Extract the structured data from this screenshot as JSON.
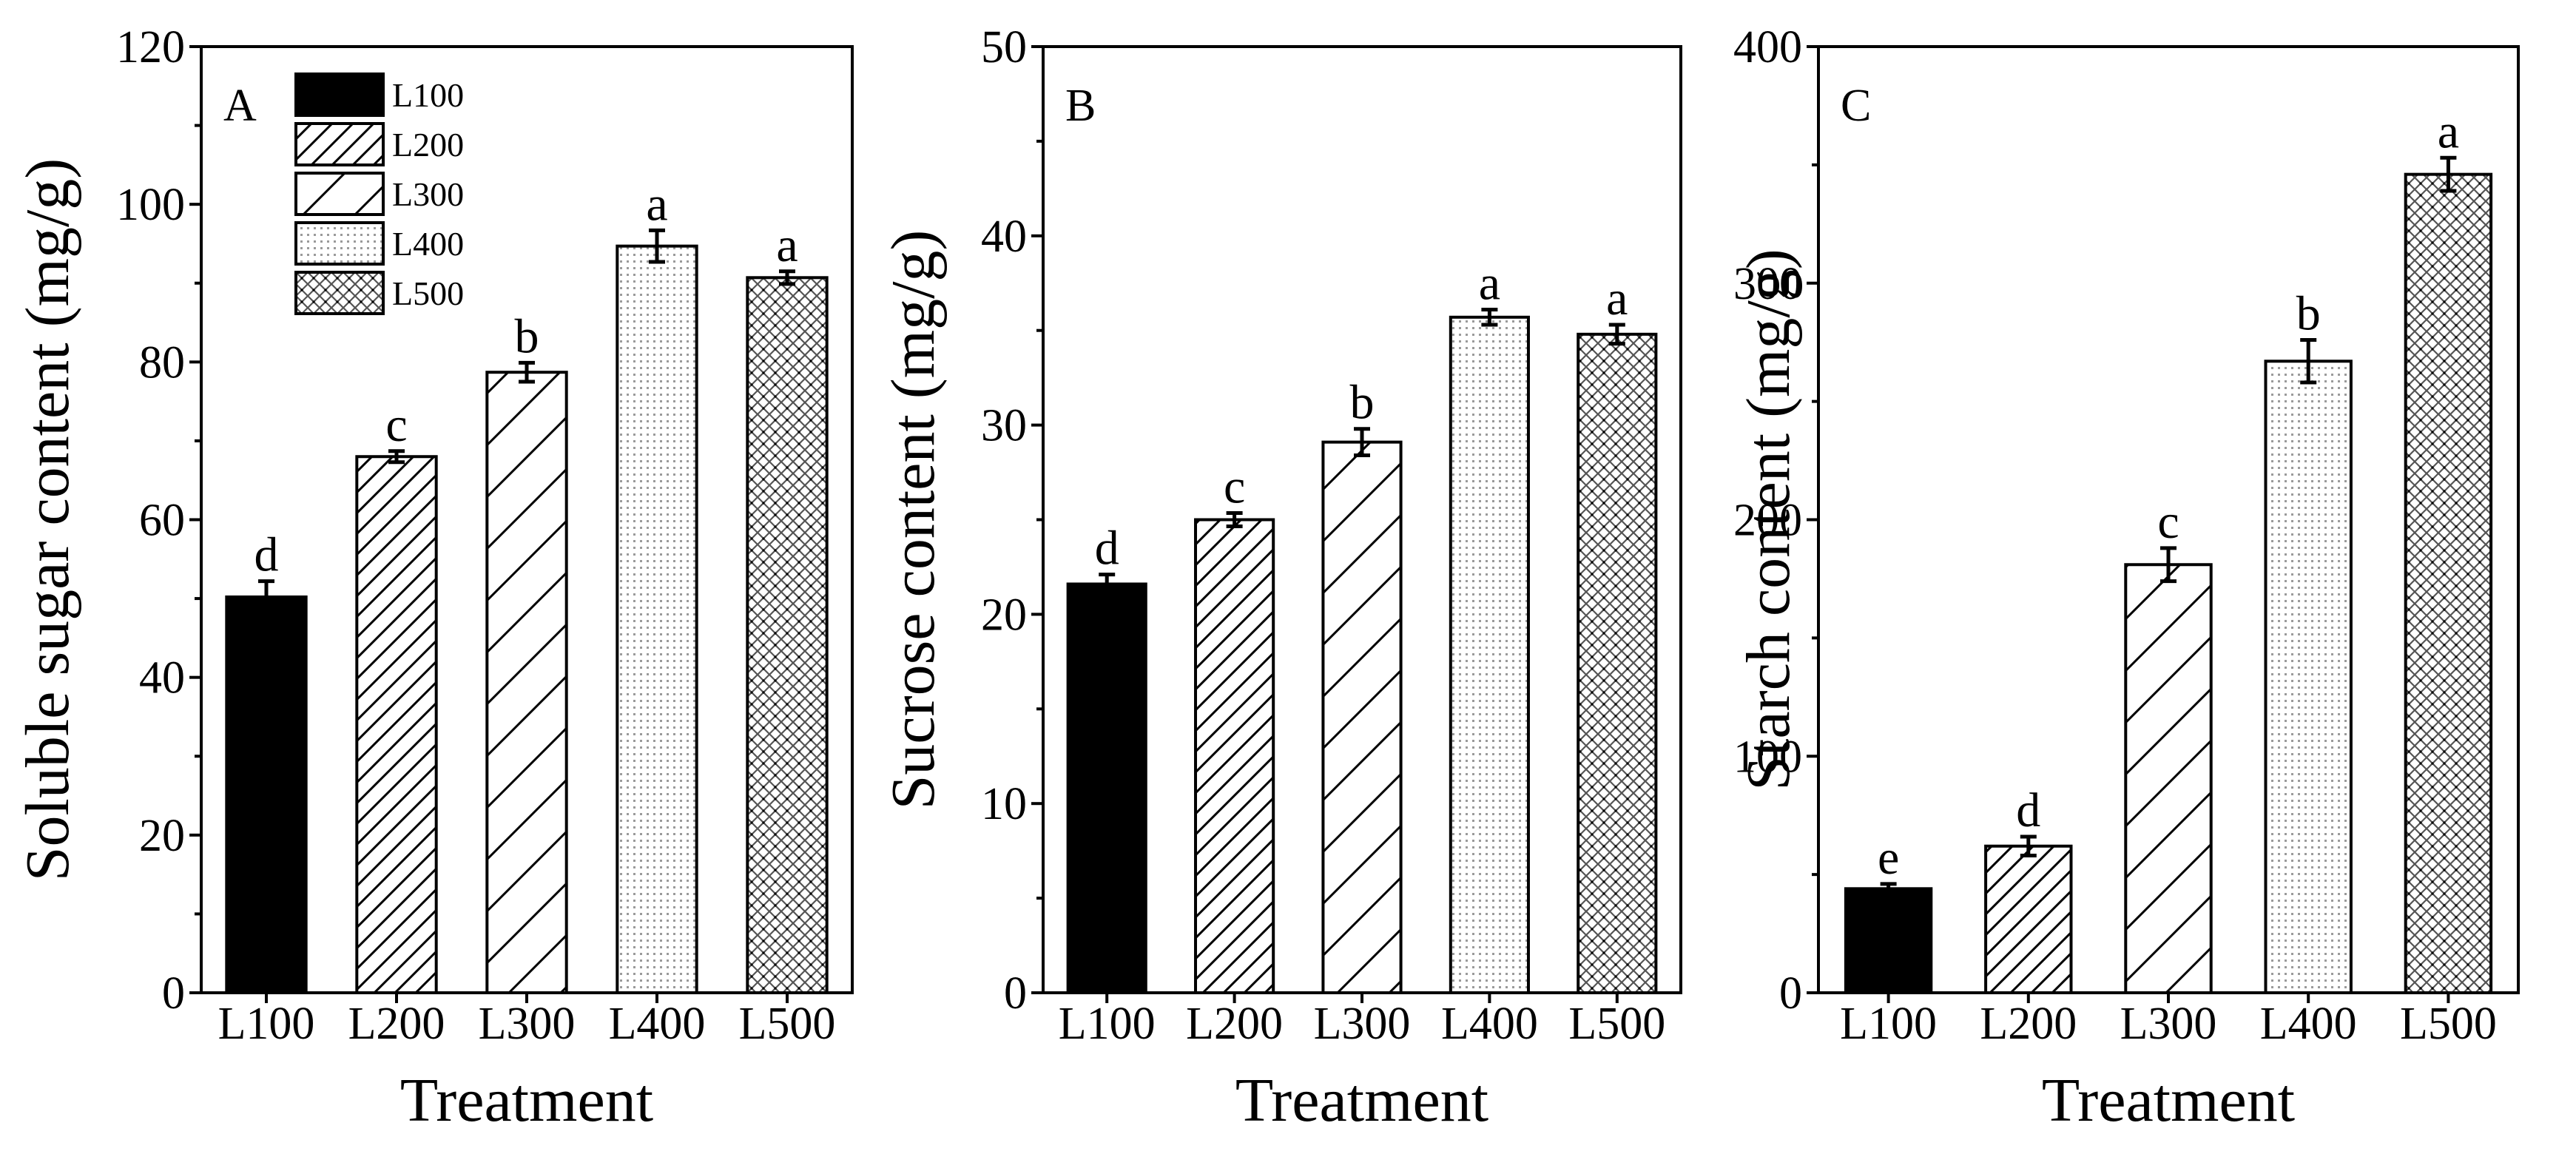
{
  "legend": {
    "entries": [
      "L100",
      "L200",
      "L300",
      "L400",
      "L500"
    ],
    "placement": "top-left (panel A)"
  },
  "treatment_styles": [
    {
      "treatment": "L100",
      "pattern": "solid",
      "color": "#000000"
    },
    {
      "treatment": "L200",
      "pattern": "dense-diagonal-hatch",
      "color": "#000000"
    },
    {
      "treatment": "L300",
      "pattern": "sparse-diagonal-hatch",
      "color": "#000000"
    },
    {
      "treatment": "L400",
      "pattern": "fine-dots",
      "color": "#000000"
    },
    {
      "treatment": "L500",
      "pattern": "crosshatch-dots",
      "color": "#000000"
    }
  ],
  "chart_data": [
    {
      "type": "bar",
      "panel_label": "A",
      "title": "",
      "xlabel": "Treatment",
      "ylabel": "Soluble sugar content (mg/g)",
      "categories": [
        "L100",
        "L200",
        "L300",
        "L400",
        "L500"
      ],
      "values": [
        50.2,
        68.0,
        78.7,
        94.7,
        90.7
      ],
      "errors": [
        2.0,
        0.7,
        1.2,
        2.0,
        0.8
      ],
      "significance": [
        "d",
        "c",
        "b",
        "a",
        "a"
      ],
      "ylim": [
        0,
        120
      ],
      "yticks": [
        0,
        20,
        40,
        60,
        80,
        100,
        120
      ],
      "has_legend": true
    },
    {
      "type": "bar",
      "panel_label": "B",
      "title": "",
      "xlabel": "Treatment",
      "ylabel": "Sucrose content (mg/g)",
      "categories": [
        "L100",
        "L200",
        "L300",
        "L400",
        "L500"
      ],
      "values": [
        21.6,
        25.0,
        29.1,
        35.7,
        34.8
      ],
      "errors": [
        0.5,
        0.35,
        0.7,
        0.4,
        0.5
      ],
      "significance": [
        "d",
        "c",
        "b",
        "a",
        "a"
      ],
      "ylim": [
        0,
        50
      ],
      "yticks": [
        0,
        10,
        20,
        30,
        40,
        50
      ],
      "has_legend": false
    },
    {
      "type": "bar",
      "panel_label": "C",
      "title": "",
      "xlabel": "Treatment",
      "ylabel": "Starch content (mg/g)",
      "categories": [
        "L100",
        "L200",
        "L300",
        "L400",
        "L500"
      ],
      "values": [
        44,
        62,
        181,
        267,
        346
      ],
      "errors": [
        2,
        4,
        7,
        9,
        7
      ],
      "significance": [
        "e",
        "d",
        "c",
        "b",
        "a"
      ],
      "ylim": [
        0,
        400
      ],
      "yticks": [
        0,
        100,
        200,
        300,
        400
      ],
      "has_legend": false
    }
  ]
}
